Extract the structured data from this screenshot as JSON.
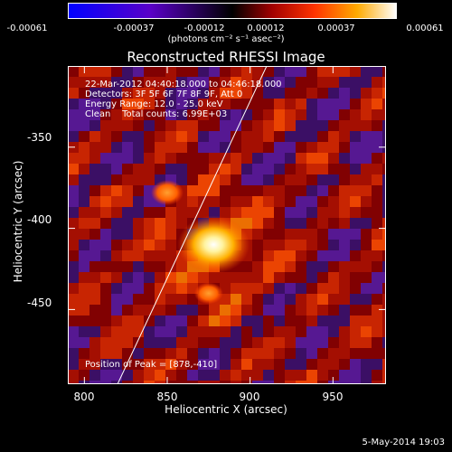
{
  "colorbar": {
    "ticks": [
      "-0.00061",
      "-0.00037",
      "-0.00012",
      "0.00012",
      "0.00037",
      "0.00061"
    ],
    "unit_label": "(photons cm⁻² s⁻¹ asec⁻²)"
  },
  "chart_data": {
    "type": "heatmap",
    "title": "Reconstructed RHESSI Image",
    "xlabel": "Heliocentric X (arcsec)",
    "ylabel": "Heliocentric Y (arcsec)",
    "xlim": [
      790,
      982
    ],
    "ylim": [
      -496,
      -300
    ],
    "x_ticks": [
      "800",
      "850",
      "900",
      "950"
    ],
    "y_ticks": [
      "-350",
      "-400",
      "-450"
    ],
    "colorbar_range": [
      -0.00061,
      0.00061
    ],
    "peak": {
      "x": 878,
      "y": -410
    },
    "limb_line": {
      "x": [
        820,
        910
      ],
      "y": [
        -496,
        -300
      ]
    },
    "annotations": {
      "time_range": "22-Mar-2012 04:40:18.000 to 04:46:18.000",
      "detectors": "Detectors: 3F 5F 6F 7F 8F 9F, Att 0",
      "energy": "Energy Range: 12.0 - 25.0 keV",
      "algorithm": "Clean    Total counts: 6.99E+03",
      "peak_text": "Position of Peak = [878,-410]"
    }
  },
  "footer": {
    "date": "5-May-2014 19:03"
  }
}
